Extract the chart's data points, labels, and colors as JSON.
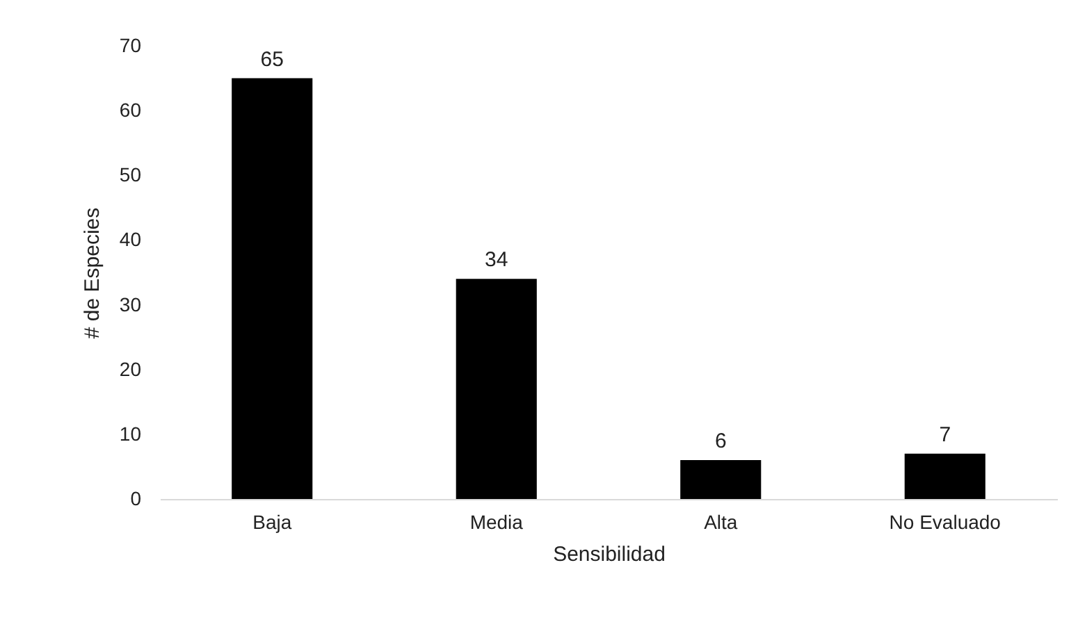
{
  "chart_data": {
    "type": "bar",
    "xlabel": "Sensibilidad",
    "ylabel": "# de Especies",
    "categories": [
      "Baja",
      "Media",
      "Alta",
      "No Evaluado"
    ],
    "values": [
      65,
      34,
      6,
      7
    ],
    "color": "#000000",
    "ylim": [
      0,
      70
    ],
    "yticks": [
      0,
      10,
      20,
      30,
      40,
      50,
      60,
      70
    ],
    "grid": false,
    "data_labels": true
  }
}
